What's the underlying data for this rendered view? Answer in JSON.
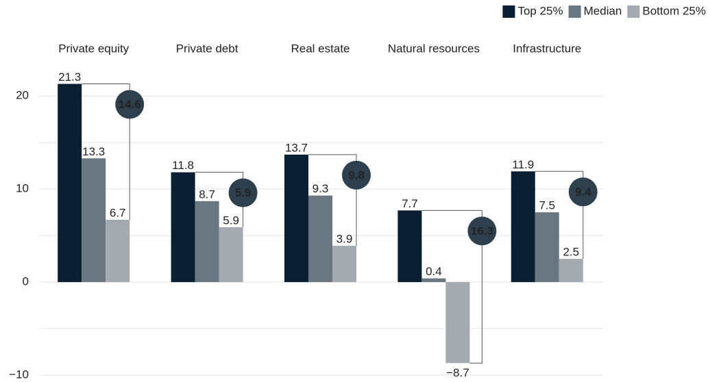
{
  "chart_data": {
    "type": "bar",
    "categories": [
      "Private equity",
      "Private debt",
      "Real estate",
      "Natural resources",
      "Infrastructure"
    ],
    "series": [
      {
        "name": "Top 25%",
        "color": "#0b1f33",
        "values": [
          21.3,
          11.8,
          13.7,
          7.7,
          11.9
        ]
      },
      {
        "name": "Median",
        "color": "#6b7780",
        "values": [
          13.3,
          8.7,
          9.3,
          0.4,
          7.5
        ]
      },
      {
        "name": "Bottom 25%",
        "color": "#a3aab0",
        "values": [
          6.7,
          5.9,
          3.9,
          -8.7,
          2.5
        ],
        "value_labels": [
          "6.7",
          "5.9",
          "3.9",
          "−8.7",
          "2.5"
        ]
      }
    ],
    "spread": [
      14.6,
      5.9,
      9.8,
      16.3,
      9.4
    ],
    "ylim": [
      -10,
      22
    ],
    "yticks": [
      {
        "value": -10,
        "label": "−10"
      },
      0,
      10,
      20
    ],
    "minor_yticks": [
      -5,
      5,
      15
    ],
    "grid": true,
    "legend": "top-right"
  }
}
